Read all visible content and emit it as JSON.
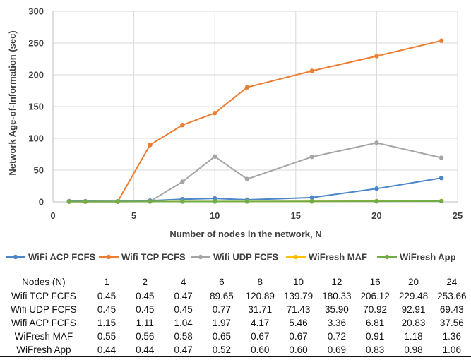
{
  "chart_data": {
    "type": "line",
    "title": "",
    "xlabel": "Number of nodes in the network, N",
    "ylabel": "Network Age-of-Information (sec)",
    "xlim": [
      0,
      25
    ],
    "ylim": [
      0,
      300
    ],
    "xticks": [
      "0",
      "5",
      "10",
      "15",
      "20",
      "25"
    ],
    "yticks": [
      "0",
      "50",
      "100",
      "150",
      "200",
      "250",
      "300"
    ],
    "grid": "horizontal",
    "legend": "bottom",
    "series": [
      {
        "name": "WiFi ACP FCFS",
        "color": "#4a86c8",
        "points": [
          [
            1,
            1.15
          ],
          [
            2,
            1.11
          ],
          [
            4,
            1.04
          ],
          [
            6,
            1.97
          ],
          [
            8,
            4.17
          ],
          [
            10,
            5.46
          ],
          [
            12,
            3.36
          ],
          [
            16,
            6.81
          ],
          [
            20,
            20.83
          ],
          [
            24,
            37.56
          ]
        ]
      },
      {
        "name": "Wifi TCP FCFS",
        "color": "#ed7d31",
        "points": [
          [
            1,
            0.45
          ],
          [
            2,
            0.45
          ],
          [
            4,
            0.47
          ],
          [
            6,
            89.65
          ],
          [
            8,
            120.89
          ],
          [
            10,
            139.79
          ],
          [
            12,
            180.33
          ],
          [
            16,
            206.12
          ],
          [
            20,
            229.48
          ],
          [
            24,
            253.66
          ]
        ]
      },
      {
        "name": "Wifi UDP FCFS",
        "color": "#a5a5a5",
        "points": [
          [
            1,
            0.45
          ],
          [
            2,
            0.45
          ],
          [
            4,
            0.45
          ],
          [
            6,
            0.77
          ],
          [
            8,
            31.71
          ],
          [
            10,
            71.43
          ],
          [
            12,
            35.9
          ],
          [
            16,
            70.92
          ],
          [
            20,
            92.91
          ],
          [
            24,
            69.43
          ]
        ]
      },
      {
        "name": "WiFresh MAF",
        "color": "#ffc000",
        "points": [
          [
            1,
            0.55
          ],
          [
            2,
            0.56
          ],
          [
            4,
            0.58
          ],
          [
            6,
            0.65
          ],
          [
            8,
            0.67
          ],
          [
            10,
            0.67
          ],
          [
            12,
            0.72
          ],
          [
            16,
            0.91
          ],
          [
            20,
            1.18
          ],
          [
            24,
            1.36
          ]
        ]
      },
      {
        "name": "WiFresh App",
        "color": "#70ad47",
        "points": [
          [
            1,
            0.44
          ],
          [
            2,
            0.44
          ],
          [
            4,
            0.47
          ],
          [
            6,
            0.52
          ],
          [
            8,
            0.6
          ],
          [
            10,
            0.6
          ],
          [
            12,
            0.69
          ],
          [
            16,
            0.83
          ],
          [
            20,
            0.98
          ],
          [
            24,
            1.06
          ]
        ]
      }
    ]
  },
  "table": {
    "header": [
      "Nodes (N)",
      "1",
      "2",
      "4",
      "6",
      "8",
      "10",
      "12",
      "16",
      "20",
      "24"
    ],
    "rows": [
      [
        "Wifi TCP FCFS",
        "0.45",
        "0.45",
        "0.47",
        "89.65",
        "120.89",
        "139.79",
        "180.33",
        "206.12",
        "229.48",
        "253.66"
      ],
      [
        "Wifi UDP FCFS",
        "0.45",
        "0.45",
        "0.45",
        "0.77",
        "31.71",
        "71.43",
        "35.90",
        "70.92",
        "92.91",
        "69.43"
      ],
      [
        "Wifi ACP FCFS",
        "1.15",
        "1.11",
        "1.04",
        "1.97",
        "4.17",
        "5.46",
        "3.36",
        "6.81",
        "20.83",
        "37.56"
      ],
      [
        "WiFresh MAF",
        "0.55",
        "0.56",
        "0.58",
        "0.65",
        "0.67",
        "0.67",
        "0.72",
        "0.91",
        "1.18",
        "1.36"
      ],
      [
        "WiFresh App",
        "0.44",
        "0.44",
        "0.47",
        "0.52",
        "0.60",
        "0.60",
        "0.69",
        "0.83",
        "0.98",
        "1.06"
      ]
    ]
  }
}
